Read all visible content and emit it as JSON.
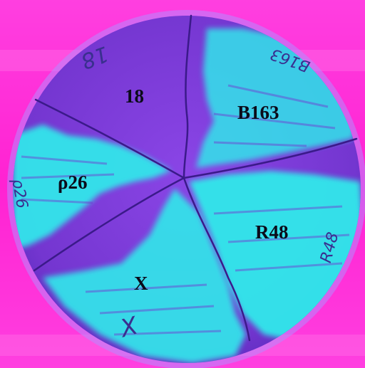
{
  "photo": {
    "sectors": [
      {
        "id": "18",
        "label": "18",
        "handwritten": "18"
      },
      {
        "id": "B163",
        "label": "B163",
        "handwritten": "B163"
      },
      {
        "id": "R48",
        "label": "R48",
        "handwritten": "R48"
      },
      {
        "id": "X",
        "label": "X",
        "handwritten": "X"
      },
      {
        "id": "p26",
        "label": "ρ26",
        "handwritten": "ρ26"
      }
    ],
    "colors": {
      "backdrop": "#ff2ad8",
      "plate": "#7a3bd6",
      "plate_rim": "#b58bff",
      "fluorescence": "#33e6ea",
      "divider": "#3b1a8a",
      "label_text": "#0b0b1a"
    }
  }
}
